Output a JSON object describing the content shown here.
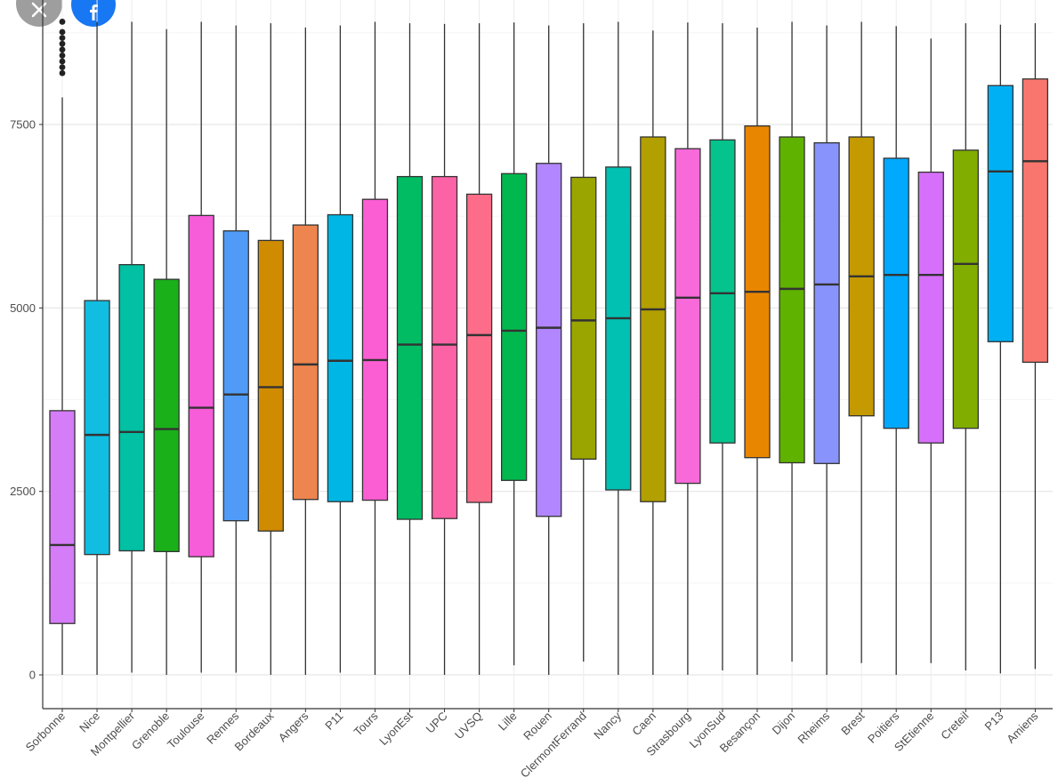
{
  "overlay": {
    "close_icon": "close-icon",
    "facebook_icon": "facebook-icon",
    "close_color": "#9e9e9e",
    "facebook_color": "#1877f2"
  },
  "chart_data": {
    "type": "boxplot",
    "title": "",
    "xlabel": "",
    "ylabel": "",
    "ylim": [
      -600,
      9300
    ],
    "y_ticks": [
      0,
      2500,
      5000,
      7500
    ],
    "grid": true,
    "legend": "none",
    "categories": [
      "Sorbonne",
      "Nice",
      "Montpellier",
      "Grenoble",
      "Toulouse",
      "Rennes",
      "Bordeaux",
      "Angers",
      "P11",
      "Tours",
      "LyonEst",
      "UPC",
      "UVSQ",
      "Lille",
      "Rouen",
      "ClermontFerrand",
      "Nancy",
      "Caen",
      "Strasbourg",
      "LyonSud",
      "Besançon",
      "Dijon",
      "Rheims",
      "Brest",
      "Poitiers",
      "StEtienne",
      "Creteil",
      "P13",
      "Amiens"
    ],
    "colors": [
      "#d57cf8",
      "#11bde1",
      "#01c0a4",
      "#1ab01a",
      "#f75cd9",
      "#4f9bf7",
      "#d08c00",
      "#ee844e",
      "#00b6e5",
      "#fb5ed3",
      "#01bc63",
      "#fc63a6",
      "#fd6d8a",
      "#00b84e",
      "#b186fe",
      "#9aa500",
      "#00c1b2",
      "#b29f00",
      "#f86ad9",
      "#04c38d",
      "#e98600",
      "#5fb200",
      "#8993fc",
      "#c49a00",
      "#00a9fe",
      "#d670fb",
      "#80ad00",
      "#00b0f5",
      "#f8766d"
    ],
    "series": [
      {
        "name": "Sorbonne",
        "whisker_low": 0,
        "q1": 700,
        "median": 1770,
        "q3": 3600,
        "whisker_high": 7870,
        "outliers": [
          8200,
          8280,
          8360,
          8440,
          8520,
          8600,
          8680,
          8760,
          8900
        ]
      },
      {
        "name": "Nice",
        "whisker_low": 0,
        "q1": 1640,
        "median": 3270,
        "q3": 5100,
        "whisker_high": 8900,
        "outliers": []
      },
      {
        "name": "Montpellier",
        "whisker_low": 30,
        "q1": 1690,
        "median": 3310,
        "q3": 5590,
        "whisker_high": 8900,
        "outliers": []
      },
      {
        "name": "Grenoble",
        "whisker_low": 0,
        "q1": 1680,
        "median": 3350,
        "q3": 5390,
        "whisker_high": 8800,
        "outliers": []
      },
      {
        "name": "Toulouse",
        "whisker_low": 30,
        "q1": 1610,
        "median": 3640,
        "q3": 6260,
        "whisker_high": 8900,
        "outliers": []
      },
      {
        "name": "Rennes",
        "whisker_low": 30,
        "q1": 2100,
        "median": 3820,
        "q3": 6050,
        "whisker_high": 8850,
        "outliers": []
      },
      {
        "name": "Bordeaux",
        "whisker_low": 0,
        "q1": 1960,
        "median": 3920,
        "q3": 5920,
        "whisker_high": 8880,
        "outliers": []
      },
      {
        "name": "Angers",
        "whisker_low": 0,
        "q1": 2390,
        "median": 4230,
        "q3": 6130,
        "whisker_high": 8820,
        "outliers": []
      },
      {
        "name": "P11",
        "whisker_low": 30,
        "q1": 2360,
        "median": 4280,
        "q3": 6270,
        "whisker_high": 8850,
        "outliers": []
      },
      {
        "name": "Tours",
        "whisker_low": 0,
        "q1": 2380,
        "median": 4290,
        "q3": 6480,
        "whisker_high": 8900,
        "outliers": []
      },
      {
        "name": "LyonEst",
        "whisker_low": 0,
        "q1": 2120,
        "median": 4500,
        "q3": 6790,
        "whisker_high": 8880,
        "outliers": []
      },
      {
        "name": "UPC",
        "whisker_low": 0,
        "q1": 2130,
        "median": 4500,
        "q3": 6790,
        "whisker_high": 8870,
        "outliers": []
      },
      {
        "name": "UVSQ",
        "whisker_low": 0,
        "q1": 2350,
        "median": 4630,
        "q3": 6550,
        "whisker_high": 8880,
        "outliers": []
      },
      {
        "name": "Lille",
        "whisker_low": 130,
        "q1": 2650,
        "median": 4690,
        "q3": 6830,
        "whisker_high": 8890,
        "outliers": []
      },
      {
        "name": "Rouen",
        "whisker_low": 0,
        "q1": 2160,
        "median": 4730,
        "q3": 6970,
        "whisker_high": 8850,
        "outliers": []
      },
      {
        "name": "ClermontFerrand",
        "whisker_low": 180,
        "q1": 2940,
        "median": 4830,
        "q3": 6780,
        "whisker_high": 8880,
        "outliers": []
      },
      {
        "name": "Nancy",
        "whisker_low": 0,
        "q1": 2520,
        "median": 4860,
        "q3": 6920,
        "whisker_high": 8900,
        "outliers": []
      },
      {
        "name": "Caen",
        "whisker_low": 0,
        "q1": 2360,
        "median": 4980,
        "q3": 7330,
        "whisker_high": 8780,
        "outliers": []
      },
      {
        "name": "Strasbourg",
        "whisker_low": 0,
        "q1": 2610,
        "median": 5140,
        "q3": 7170,
        "whisker_high": 8890,
        "outliers": []
      },
      {
        "name": "LyonSud",
        "whisker_low": 60,
        "q1": 3160,
        "median": 5200,
        "q3": 7290,
        "whisker_high": 8880,
        "outliers": []
      },
      {
        "name": "Besançon",
        "whisker_low": 0,
        "q1": 2960,
        "median": 5220,
        "q3": 7480,
        "whisker_high": 8820,
        "outliers": []
      },
      {
        "name": "Dijon",
        "whisker_low": 180,
        "q1": 2890,
        "median": 5260,
        "q3": 7330,
        "whisker_high": 8900,
        "outliers": []
      },
      {
        "name": "Rheims",
        "whisker_low": 0,
        "q1": 2880,
        "median": 5320,
        "q3": 7250,
        "whisker_high": 8850,
        "outliers": []
      },
      {
        "name": "Brest",
        "whisker_low": 160,
        "q1": 3530,
        "median": 5430,
        "q3": 7330,
        "whisker_high": 8900,
        "outliers": []
      },
      {
        "name": "Poitiers",
        "whisker_low": 0,
        "q1": 3360,
        "median": 5450,
        "q3": 7040,
        "whisker_high": 8840,
        "outliers": []
      },
      {
        "name": "StEtienne",
        "whisker_low": 160,
        "q1": 3160,
        "median": 5450,
        "q3": 6850,
        "whisker_high": 8670,
        "outliers": []
      },
      {
        "name": "Creteil",
        "whisker_low": 60,
        "q1": 3360,
        "median": 5600,
        "q3": 7150,
        "whisker_high": 8880,
        "outliers": []
      },
      {
        "name": "P13",
        "whisker_low": 20,
        "q1": 4540,
        "median": 6860,
        "q3": 8030,
        "whisker_high": 8860,
        "outliers": []
      },
      {
        "name": "Amiens",
        "whisker_low": 80,
        "q1": 4260,
        "median": 7000,
        "q3": 8120,
        "whisker_high": 8880,
        "outliers": []
      }
    ]
  }
}
